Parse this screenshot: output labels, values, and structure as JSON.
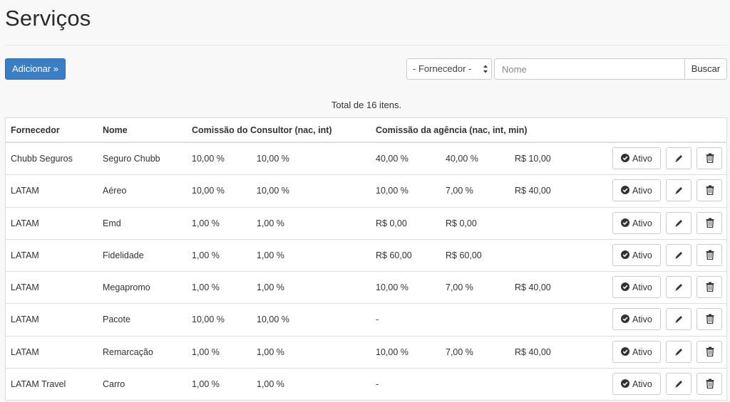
{
  "page": {
    "title": "Serviços",
    "add_button": "Adicionar »",
    "filter_select": "- Fornecedor -",
    "search_placeholder": "Nome",
    "search_button": "Buscar",
    "summary": "Total de 16 itens."
  },
  "table": {
    "headers": {
      "fornecedor": "Fornecedor",
      "nome": "Nome",
      "comissao_consultor": "Comissão do Consultor (nac, int)",
      "comissao_agencia": "Comissão da agência (nac, int, min)"
    },
    "status_label": "Ativo",
    "rows": [
      {
        "fornecedor": "Chubb Seguros",
        "nome": "Seguro Chubb",
        "cons_nac": "10,00 %",
        "cons_int": "10,00 %",
        "ag_nac": "40,00 %",
        "ag_int": "40,00 %",
        "ag_min": "R$ 10,00"
      },
      {
        "fornecedor": "LATAM",
        "nome": "Aéreo",
        "cons_nac": "10,00 %",
        "cons_int": "10,00 %",
        "ag_nac": "10,00 %",
        "ag_int": "7,00 %",
        "ag_min": "R$ 40,00"
      },
      {
        "fornecedor": "LATAM",
        "nome": "Emd",
        "cons_nac": "1,00 %",
        "cons_int": "1,00 %",
        "ag_nac": "R$ 0,00",
        "ag_int": "R$ 0,00",
        "ag_min": ""
      },
      {
        "fornecedor": "LATAM",
        "nome": "Fidelidade",
        "cons_nac": "1,00 %",
        "cons_int": "1,00 %",
        "ag_nac": "R$ 60,00",
        "ag_int": "R$ 60,00",
        "ag_min": ""
      },
      {
        "fornecedor": "LATAM",
        "nome": "Megapromo",
        "cons_nac": "1,00 %",
        "cons_int": "1,00 %",
        "ag_nac": "10,00 %",
        "ag_int": "7,00 %",
        "ag_min": "R$ 40,00"
      },
      {
        "fornecedor": "LATAM",
        "nome": "Pacote",
        "cons_nac": "10,00 %",
        "cons_int": "10,00 %",
        "ag_nac": "-",
        "ag_int": "",
        "ag_min": ""
      },
      {
        "fornecedor": "LATAM",
        "nome": "Remarcação",
        "cons_nac": "1,00 %",
        "cons_int": "1,00 %",
        "ag_nac": "10,00 %",
        "ag_int": "7,00 %",
        "ag_min": "R$ 40,00"
      },
      {
        "fornecedor": "LATAM Travel",
        "nome": "Carro",
        "cons_nac": "1,00 %",
        "cons_int": "1,00 %",
        "ag_nac": "-",
        "ag_int": "",
        "ag_min": ""
      }
    ]
  },
  "icons": {
    "status": "check-circle-icon",
    "edit": "pencil-icon",
    "delete": "trash-icon"
  },
  "colors": {
    "primary": "#3a7fc6",
    "background": "#f8f8f8"
  }
}
